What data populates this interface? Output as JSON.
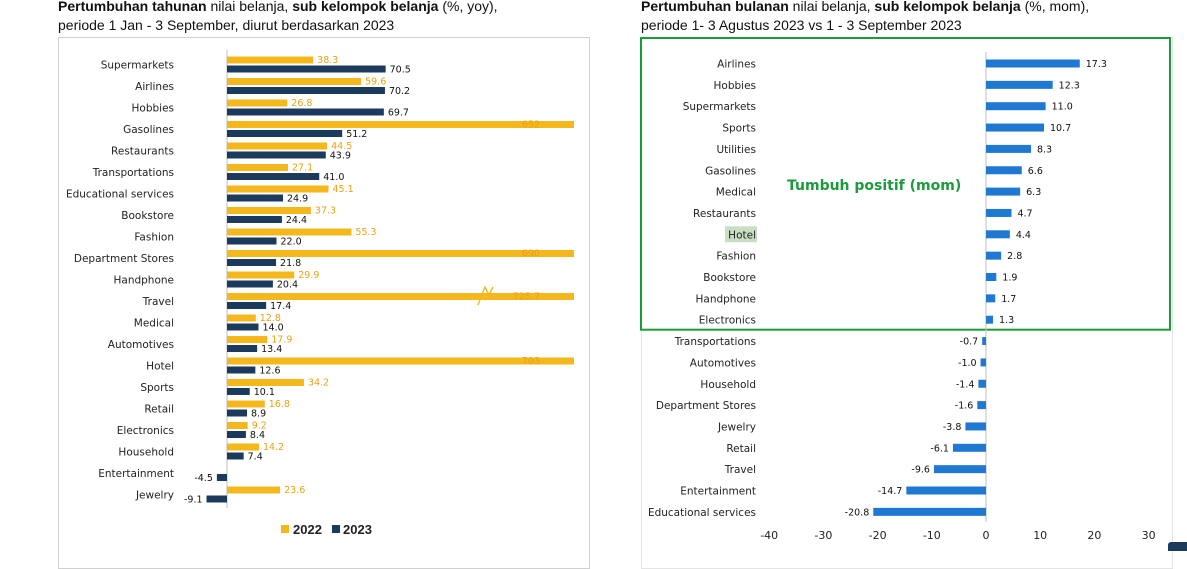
{
  "left_heading": {
    "bold1": "Pertumbuhan tahunan",
    "normal1": " nilai belanja, ",
    "bold2": "sub kelompok belanja",
    "normal2": " (%, yoy),",
    "line2": "periode 1 Jan - 3 September, diurut berdasarkan 2023"
  },
  "right_heading": {
    "bold1": "Pertumbuhan bulanan",
    "normal1": " nilai belanja, ",
    "bold2": "sub kelompok belanja",
    "normal2": " (%, mom),",
    "line2": "periode 1- 3 Agustus 2023 vs 1 - 3 September 2023"
  },
  "chart_data": [
    {
      "type": "bar",
      "orientation": "horizontal",
      "categories": [
        "Supermarkets",
        "Airlines",
        "Hobbies",
        "Gasolines",
        "Restaurants",
        "Transportations",
        "Educational services",
        "Bookstore",
        "Fashion",
        "Department Stores",
        "Handphone",
        "Travel",
        "Medical",
        "Automotives",
        "Hotel",
        "Sports",
        "Retail",
        "Electronics",
        "Household",
        "Entertainment",
        "Jewelry"
      ],
      "series": [
        {
          "name": "2022",
          "color": "#f5b81c",
          "values": [
            38.3,
            59.6,
            26.8,
            652,
            44.5,
            27.1,
            45.1,
            37.3,
            55.3,
            690,
            29.9,
            725.7,
            12.8,
            17.9,
            703,
            34.2,
            16.8,
            9.2,
            14.2,
            null,
            23.6
          ],
          "labels": [
            "38.3",
            "59.6",
            "26.8",
            "652",
            "44.5",
            "27.1",
            "45.1",
            "37.3",
            "55.3",
            "690",
            "29.9",
            "725.7",
            "12.8",
            "17.9",
            "703",
            "34.2",
            "16.8",
            "9.2",
            "14.2",
            "",
            "23.6"
          ]
        },
        {
          "name": "2023",
          "color": "#1b3a5c",
          "values": [
            70.5,
            70.2,
            69.7,
            51.2,
            43.9,
            41.0,
            24.9,
            24.4,
            22.0,
            21.8,
            20.4,
            17.4,
            14.0,
            13.4,
            12.6,
            10.1,
            8.9,
            8.4,
            7.4,
            -4.5,
            -9.1
          ],
          "labels": [
            "70.5",
            "70.2",
            "69.7",
            "51.2",
            "43.9",
            "41.0",
            "24.9",
            "24.4",
            "22.0",
            "21.8",
            "20.4",
            "17.4",
            "14.0",
            "13.4",
            "12.6",
            "10.1",
            "8.9",
            "8.4",
            "7.4",
            "-4.5",
            "-9.1"
          ]
        }
      ],
      "axis_break_on": "Travel",
      "legend": "bottom-center"
    },
    {
      "type": "bar",
      "orientation": "horizontal",
      "categories": [
        "Airlines",
        "Hobbies",
        "Supermarkets",
        "Sports",
        "Utilities",
        "Gasolines",
        "Medical",
        "Restaurants",
        "Hotel",
        "Fashion",
        "Bookstore",
        "Handphone",
        "Electronics",
        "Transportations",
        "Automotives",
        "Household",
        "Department Stores",
        "Jewelry",
        "Retail",
        "Travel",
        "Entertainment",
        "Educational services"
      ],
      "values": [
        17.3,
        12.3,
        11.0,
        10.7,
        8.3,
        6.6,
        6.3,
        4.7,
        4.4,
        2.8,
        1.9,
        1.7,
        1.3,
        -0.7,
        -1.0,
        -1.4,
        -1.6,
        -3.8,
        -6.1,
        -9.6,
        -14.7,
        -20.8
      ],
      "labels": [
        "17.3",
        "12.3",
        "11.0",
        "10.7",
        "8.3",
        "6.6",
        "6.3",
        "4.7",
        "4.4",
        "2.8",
        "1.9",
        "1.7",
        "1.3",
        "-0.7",
        "-1.0",
        "-1.4",
        "-1.6",
        "-3.8",
        "-6.1",
        "-9.6",
        "-14.7",
        "-20.8"
      ],
      "color": "#1f78d1",
      "xlim": [
        -40,
        30
      ],
      "xticks": [
        "-40",
        "-30",
        "-20",
        "-10",
        "0",
        "10",
        "20",
        "30"
      ],
      "annotation": "Tumbuh positif (mom)",
      "highlight": "Hotel",
      "highlight_color": "#c9dfc4",
      "box_color": "#1a9c3c"
    }
  ]
}
